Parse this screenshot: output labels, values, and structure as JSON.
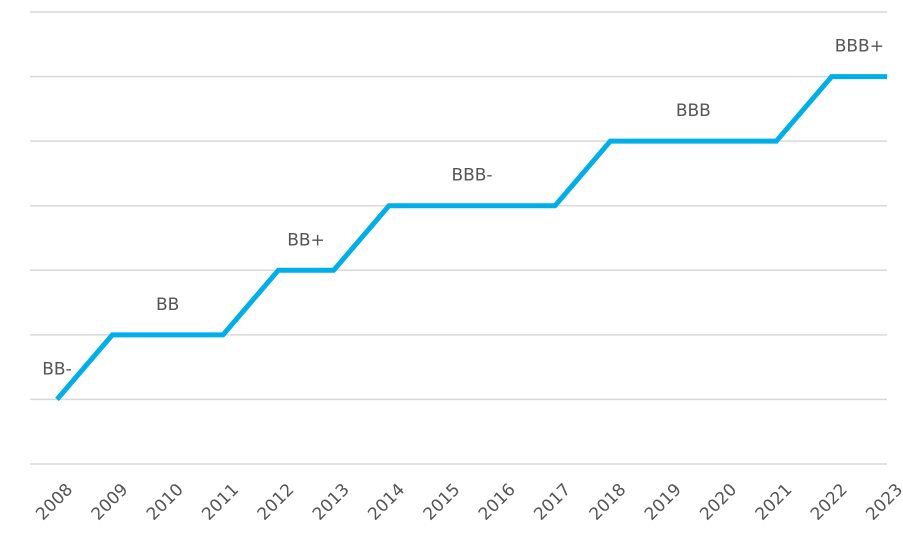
{
  "chart_data": {
    "type": "line",
    "categories": [
      "2008",
      "2009",
      "2010",
      "2011",
      "2012",
      "2013",
      "2014",
      "2015",
      "2016",
      "2017",
      "2018",
      "2019",
      "2020",
      "2021",
      "2022",
      "2023"
    ],
    "series": [
      {
        "color": "#00aee8",
        "values": [
          1,
          2,
          2,
          2,
          3,
          3,
          4,
          4,
          4,
          4,
          5,
          5,
          5,
          5,
          6,
          6
        ]
      }
    ],
    "annotations": [
      "BB-",
      "BB",
      "BB+",
      "BBB-",
      "BBB",
      "BBB+"
    ],
    "ylim": [
      0,
      7
    ],
    "yticks": [
      0,
      1,
      2,
      3,
      4,
      5,
      6,
      7
    ],
    "grid": true
  }
}
